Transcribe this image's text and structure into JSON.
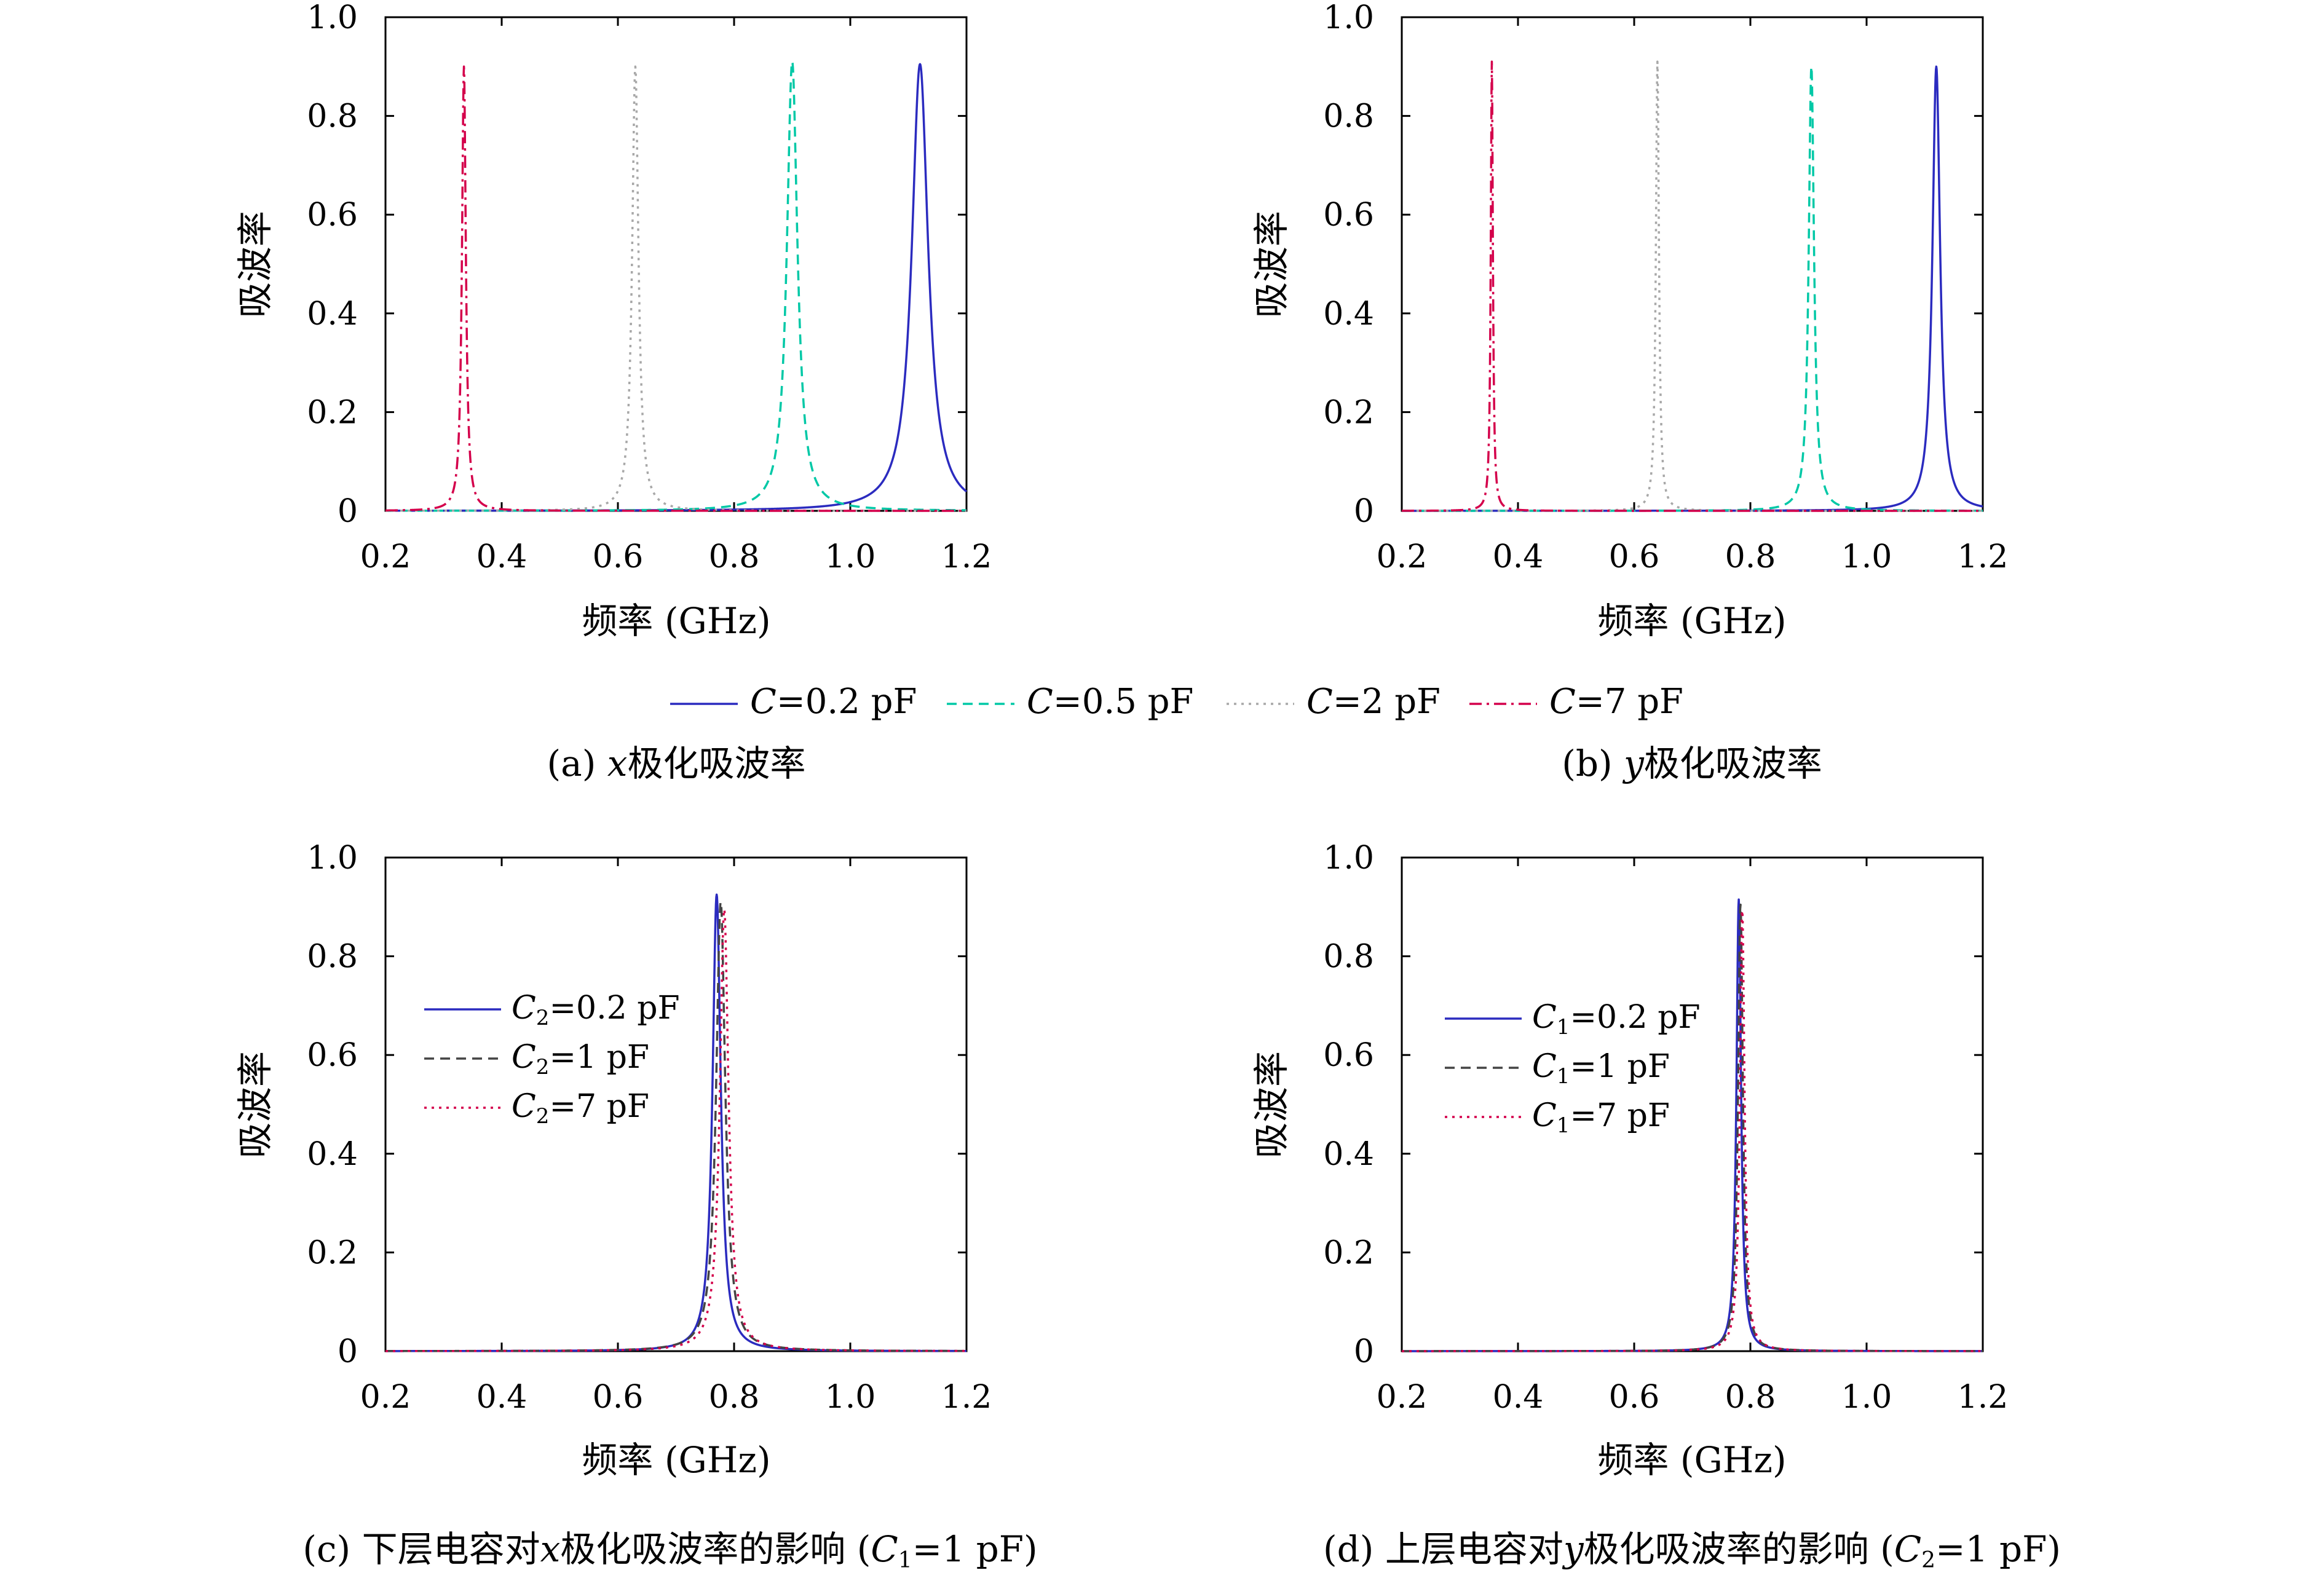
{
  "chart_data": [
    {
      "id": "a",
      "type": "line",
      "caption": {
        "prefix": "(a) ",
        "var": "x",
        "text": "极化吸波率"
      },
      "xlabel": "频率 (GHz)",
      "ylabel": "吸波率",
      "xlim": [
        0.2,
        1.2
      ],
      "ylim": [
        0,
        1.0
      ],
      "xticks": [
        "0.2",
        "0.4",
        "0.6",
        "0.8",
        "1.0",
        "1.2"
      ],
      "yticks": [
        "0",
        "0.2",
        "0.4",
        "0.6",
        "0.8",
        "1.0"
      ],
      "grid": false,
      "series": [
        {
          "name": "C=0.2 pF",
          "color": "#2b2bbf",
          "dash": "solid",
          "f0": 1.12,
          "peak": 0.905,
          "width": 0.017
        },
        {
          "name": "C=0.5 pF",
          "color": "#00c8a6",
          "dash": "dashed",
          "f0": 0.9,
          "peak": 0.91,
          "width": 0.011
        },
        {
          "name": "C=2 pF",
          "color": "#a8a8a8",
          "dash": "dotted",
          "f0": 0.63,
          "peak": 0.9,
          "width": 0.0065
        },
        {
          "name": "C=7 pF",
          "color": "#d4004b",
          "dash": "dashdot",
          "f0": 0.335,
          "peak": 0.9,
          "width": 0.004
        }
      ]
    },
    {
      "id": "b",
      "type": "line",
      "caption": {
        "prefix": "(b) ",
        "var": "y",
        "text": "极化吸波率"
      },
      "xlabel": "频率 (GHz)",
      "ylabel": "吸波率",
      "xlim": [
        0.2,
        1.2
      ],
      "ylim": [
        0,
        1.0
      ],
      "xticks": [
        "0.2",
        "0.4",
        "0.6",
        "0.8",
        "1.0",
        "1.2"
      ],
      "yticks": [
        "0",
        "0.2",
        "0.4",
        "0.6",
        "0.8",
        "1.0"
      ],
      "grid": false,
      "series": [
        {
          "name": "C=0.2 pF",
          "color": "#2b2bbf",
          "dash": "solid",
          "f0": 1.12,
          "peak": 0.9,
          "width": 0.008
        },
        {
          "name": "C=0.5 pF",
          "color": "#00c8a6",
          "dash": "dashed",
          "f0": 0.905,
          "peak": 0.9,
          "width": 0.0055
        },
        {
          "name": "C=2 pF",
          "color": "#a8a8a8",
          "dash": "dotted",
          "f0": 0.64,
          "peak": 0.91,
          "width": 0.0032
        },
        {
          "name": "C=7 pF",
          "color": "#d4004b",
          "dash": "dashdot",
          "f0": 0.355,
          "peak": 0.91,
          "width": 0.0022
        }
      ]
    },
    {
      "id": "c",
      "type": "line",
      "caption": {
        "pre": "(c) 下层电容对",
        "var": "x",
        "post": "极化吸波率的影响 (",
        "cvar": "C",
        "csub": "1",
        "cval": "=1 pF)"
      },
      "xlabel": "频率 (GHz)",
      "ylabel": "吸波率",
      "xlim": [
        0.2,
        1.2
      ],
      "ylim": [
        0,
        1.0
      ],
      "xticks": [
        "0.2",
        "0.4",
        "0.6",
        "0.8",
        "1.0",
        "1.2"
      ],
      "yticks": [
        "0",
        "0.2",
        "0.4",
        "0.6",
        "0.8",
        "1.0"
      ],
      "grid": false,
      "legend_position": "upper-left",
      "series": [
        {
          "name": "C2=0.2 pF",
          "sym": "C",
          "sub": "2",
          "val": "=0.2 pF",
          "color": "#2b2bbf",
          "dash": "solid",
          "f0": 0.77,
          "peak": 0.925,
          "width": 0.0085
        },
        {
          "name": "C2=1 pF",
          "sym": "C",
          "sub": "2",
          "val": "=1 pF",
          "color": "#444444",
          "dash": "dashed",
          "f0": 0.777,
          "peak": 0.91,
          "width": 0.0095
        },
        {
          "name": "C2=7 pF",
          "sym": "C",
          "sub": "2",
          "val": "=7 pF",
          "color": "#d4004b",
          "dash": "dotted",
          "f0": 0.783,
          "peak": 0.895,
          "width": 0.009
        }
      ]
    },
    {
      "id": "d",
      "type": "line",
      "caption": {
        "pre": "(d) 上层电容对",
        "var": "y",
        "post": "极化吸波率的影响 (",
        "cvar": "C",
        "csub": "2",
        "cval": "=1 pF)"
      },
      "xlabel": "频率 (GHz)",
      "ylabel": "吸波率",
      "xlim": [
        0.2,
        1.2
      ],
      "ylim": [
        0,
        1.0
      ],
      "xticks": [
        "0.2",
        "0.4",
        "0.6",
        "0.8",
        "1.0",
        "1.2"
      ],
      "yticks": [
        "0",
        "0.2",
        "0.4",
        "0.6",
        "0.8",
        "1.0"
      ],
      "grid": false,
      "legend_position": "upper-left",
      "series": [
        {
          "name": "C1=0.2 pF",
          "sym": "C",
          "sub": "1",
          "val": "=0.2 pF",
          "color": "#2b2bbf",
          "dash": "solid",
          "f0": 0.78,
          "peak": 0.915,
          "width": 0.0048
        },
        {
          "name": "C1=1 pF",
          "sym": "C",
          "sub": "1",
          "val": "=1 pF",
          "color": "#444444",
          "dash": "dashed",
          "f0": 0.783,
          "peak": 0.905,
          "width": 0.005
        },
        {
          "name": "C1=7 pF",
          "sym": "C",
          "sub": "1",
          "val": "=7 pF",
          "color": "#d4004b",
          "dash": "dotted",
          "f0": 0.786,
          "peak": 0.895,
          "width": 0.0048
        }
      ]
    }
  ]
}
